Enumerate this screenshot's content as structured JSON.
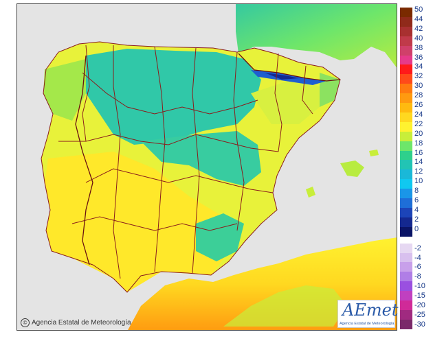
{
  "copyright": {
    "symbol": "©",
    "text": "Agencia Estatal de Meteorología"
  },
  "logo": {
    "title": "AEmet",
    "subtitle": "Agencia Estatal de Meteorología"
  },
  "legend": {
    "positive": [
      {
        "label": "50",
        "color": "#7a2a00"
      },
      {
        "label": "44",
        "color": "#902a1a"
      },
      {
        "label": "42",
        "color": "#a83030"
      },
      {
        "label": "40",
        "color": "#c03a4a"
      },
      {
        "label": "38",
        "color": "#d0406a"
      },
      {
        "label": "36",
        "color": "#e63a8a"
      },
      {
        "label": "34",
        "color": "#ff1a1a"
      },
      {
        "label": "32",
        "color": "#ff4a1a"
      },
      {
        "label": "30",
        "color": "#ff7a10"
      },
      {
        "label": "28",
        "color": "#ff9a10"
      },
      {
        "label": "26",
        "color": "#ffba10"
      },
      {
        "label": "24",
        "color": "#ffd820"
      },
      {
        "label": "22",
        "color": "#fff230"
      },
      {
        "label": "20",
        "color": "#c8ee3a"
      },
      {
        "label": "18",
        "color": "#6ee66a"
      },
      {
        "label": "16",
        "color": "#2ed08c"
      },
      {
        "label": "14",
        "color": "#22c4b4"
      },
      {
        "label": "12",
        "color": "#1ab8d8"
      },
      {
        "label": "10",
        "color": "#10c8f0"
      },
      {
        "label": "8",
        "color": "#1a96e8"
      },
      {
        "label": "6",
        "color": "#1e6ed8"
      },
      {
        "label": "4",
        "color": "#1c44b8"
      },
      {
        "label": "2",
        "color": "#142890"
      },
      {
        "label": "0",
        "color": "#0a1466"
      }
    ],
    "negative": [
      {
        "label": "-2",
        "color": "#e6d8f2"
      },
      {
        "label": "-4",
        "color": "#d8c0ee"
      },
      {
        "label": "-6",
        "color": "#c8a0ea"
      },
      {
        "label": "-8",
        "color": "#b07ee6"
      },
      {
        "label": "-10",
        "color": "#9a50e0"
      },
      {
        "label": "-15",
        "color": "#c040c0"
      },
      {
        "label": "-20",
        "color": "#d02a98"
      },
      {
        "label": "-25",
        "color": "#a02a80"
      },
      {
        "label": "-30",
        "color": "#7a2a6a"
      }
    ]
  }
}
